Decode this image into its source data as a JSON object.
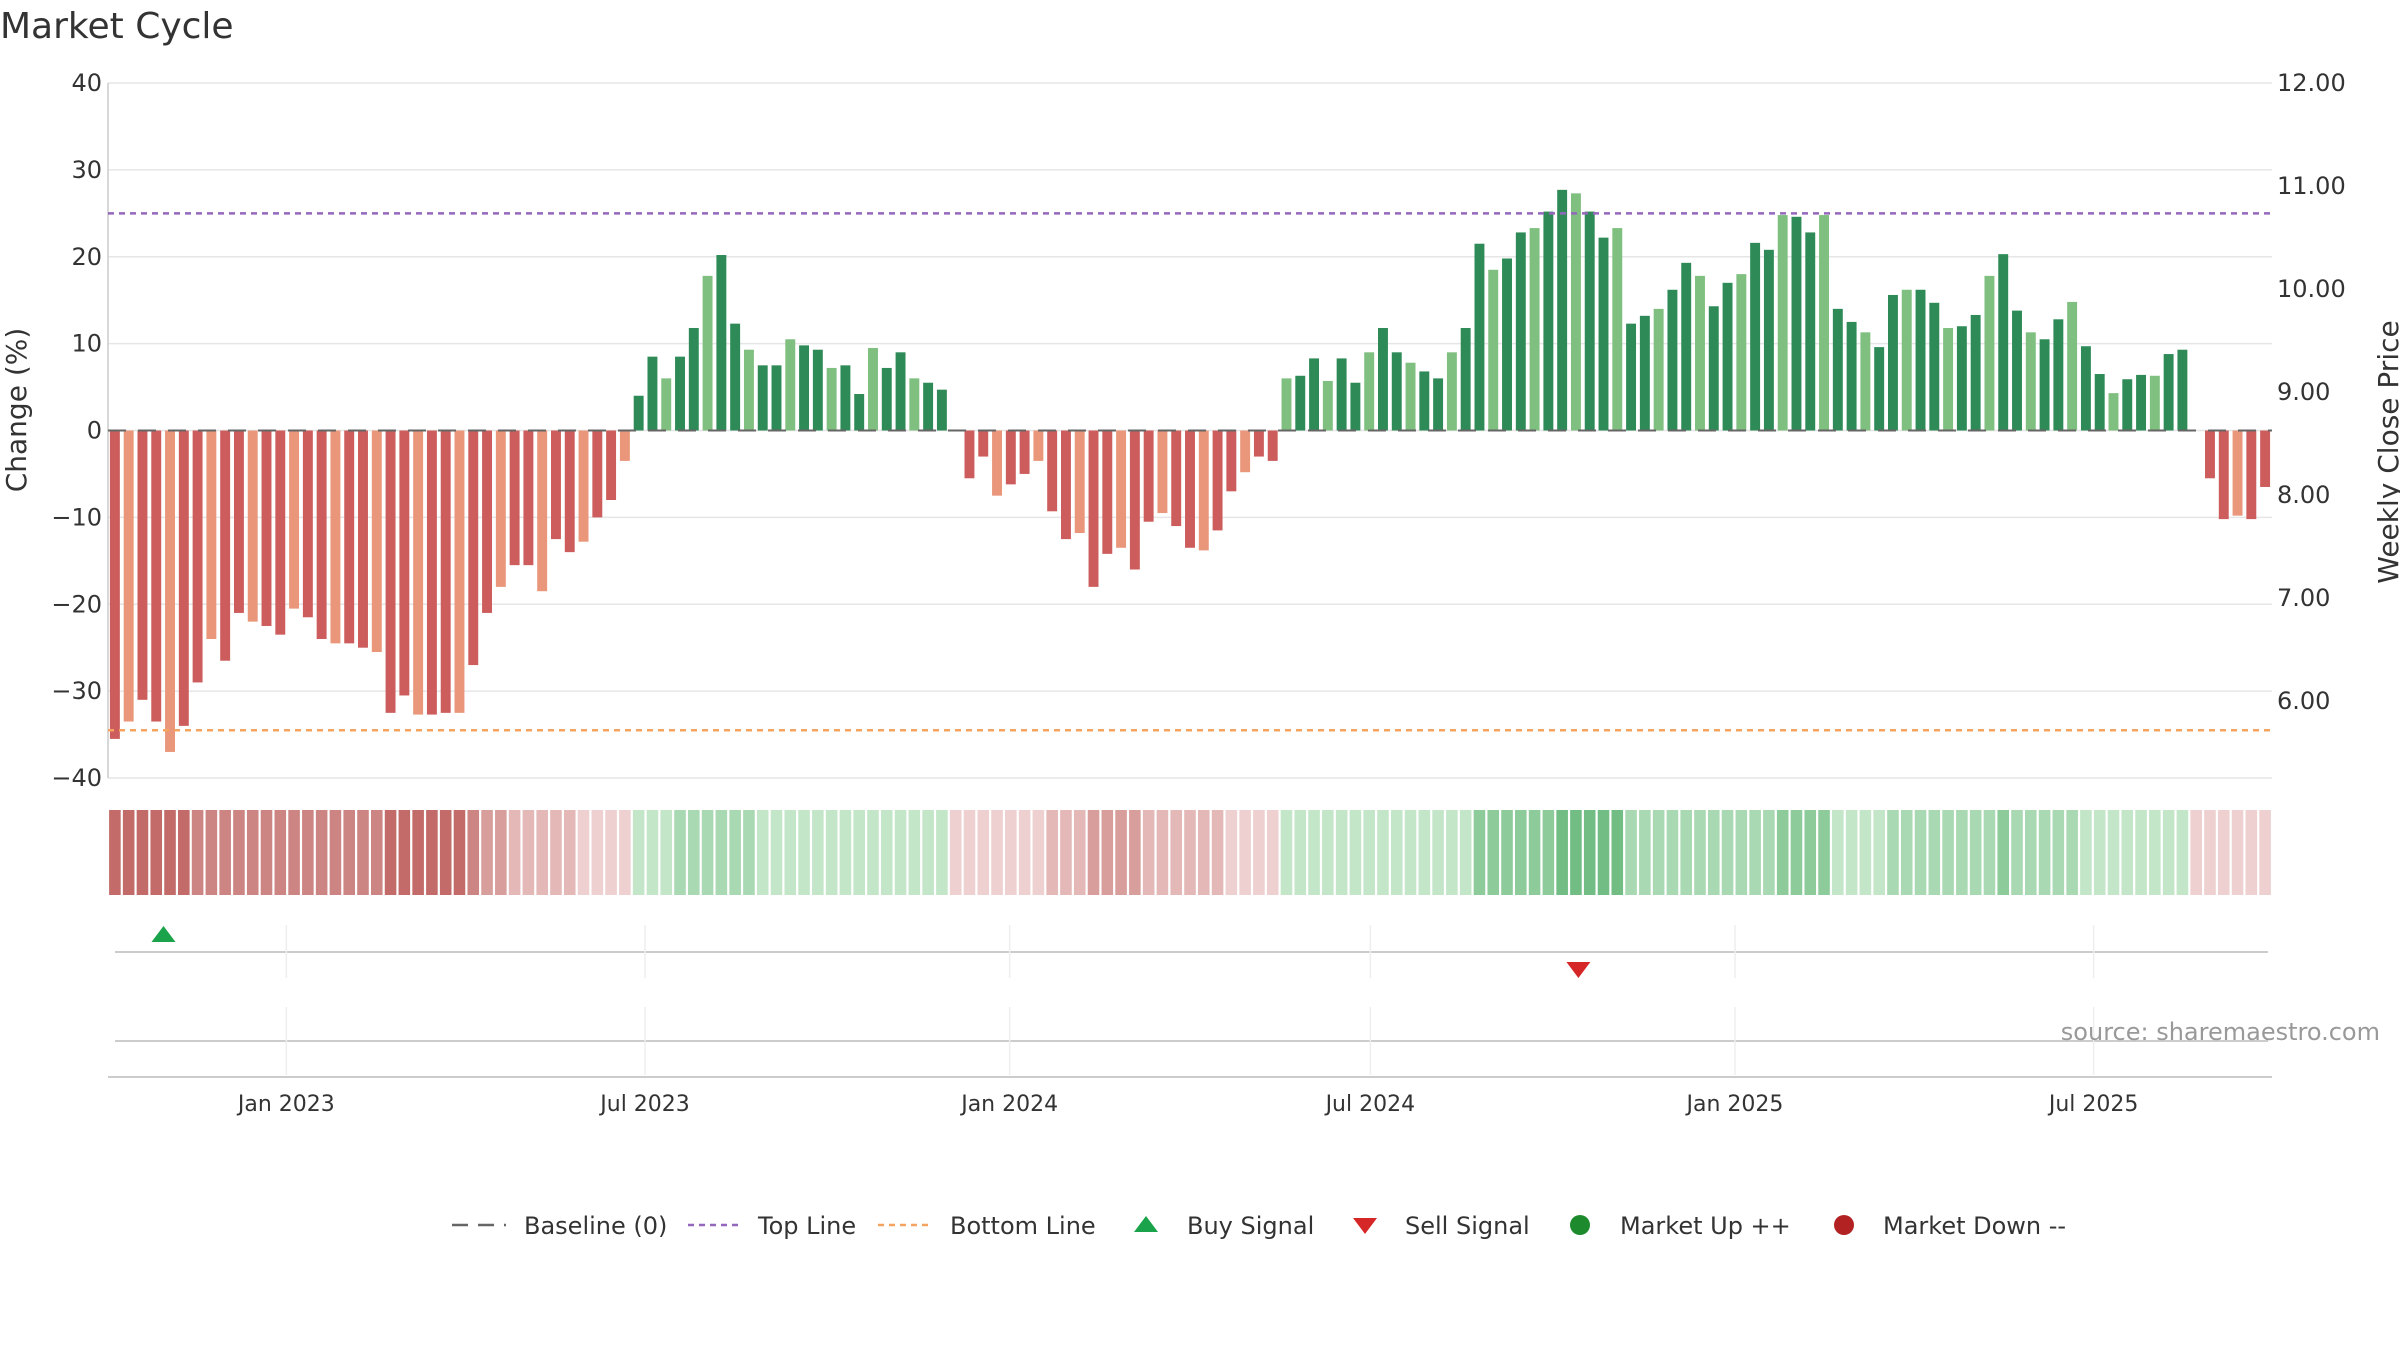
{
  "title": "Market Cycle",
  "source": "source: sharemaestro.com",
  "chart_data": {
    "type": "bar",
    "title": "Market Cycle",
    "ylabel": "Change (%)",
    "y2label": "Weekly Close Price",
    "ylim": [
      -40,
      40
    ],
    "y_ticks": [
      40,
      30,
      20,
      10,
      0,
      -10,
      -20,
      -30,
      -40
    ],
    "y_tick_labels": [
      "40",
      "30",
      "20",
      "10",
      "0",
      "−10",
      "−20",
      "−30",
      "−40"
    ],
    "y2lim": [
      5.25,
      12.0
    ],
    "y2_ticks": [
      "12.00",
      "11.00",
      "10.00",
      "9.00",
      "8.00",
      "7.00",
      "6.00"
    ],
    "x_start": "2022-10-03",
    "x_end": "2025-09-29",
    "x_ticks": [
      {
        "date": "2023-01-01",
        "label": "Jan 2023"
      },
      {
        "date": "2023-07-01",
        "label": "Jul 2023"
      },
      {
        "date": "2024-01-01",
        "label": "Jan 2024"
      },
      {
        "date": "2024-07-01",
        "label": "Jul 2024"
      },
      {
        "date": "2025-01-01",
        "label": "Jan 2025"
      },
      {
        "date": "2025-07-01",
        "label": "Jul 2025"
      }
    ],
    "top_line": 25,
    "bottom_line": -34.5,
    "baseline": 0,
    "grid": true,
    "values": [
      -35.5,
      -33.5,
      -31,
      -33.5,
      -37,
      -34,
      -29,
      -24,
      -26.5,
      -21,
      -22,
      -22.5,
      -23.5,
      -20.5,
      -21.5,
      -24,
      -24.5,
      -24.5,
      -25,
      -25.5,
      -32.5,
      -30.5,
      -32.7,
      -32.7,
      -32.5,
      -32.5,
      -27,
      -21,
      -18,
      -15.5,
      -15.5,
      -18.5,
      -12.5,
      -14,
      -12.8,
      -10,
      -8,
      -3.5,
      4,
      8.5,
      6,
      8.5,
      11.8,
      17.8,
      20.2,
      12.3,
      9.3,
      7.5,
      7.5,
      10.5,
      9.8,
      9.3,
      7.2,
      7.5,
      4.2,
      9.5,
      7.2,
      9,
      6,
      5.5,
      4.7,
      0,
      -5.5,
      -3,
      -7.5,
      -6.2,
      -5,
      -3.5,
      -9.3,
      -12.5,
      -11.8,
      -18,
      -14.2,
      -13.5,
      -16,
      -10.5,
      -9.5,
      -11,
      -13.5,
      -13.8,
      -11.5,
      -7,
      -4.8,
      -3,
      -3.5,
      6,
      6.3,
      8.3,
      5.7,
      8.3,
      5.5,
      9,
      11.8,
      9,
      7.8,
      6.8,
      6,
      9,
      11.8,
      21.5,
      18.5,
      19.8,
      22.8,
      23.3,
      25.2,
      27.7,
      27.3,
      25.2,
      22.2,
      23.3,
      12.3,
      13.2,
      14,
      16.2,
      19.3,
      17.8,
      14.3,
      17,
      18,
      21.6,
      20.8,
      24.8,
      24.6,
      22.8,
      24.8,
      14,
      12.5,
      11.3,
      9.6,
      15.6,
      16.2,
      16.2,
      14.7,
      11.8,
      12,
      13.3,
      17.8,
      20.3,
      13.8,
      11.3,
      10.5,
      12.8,
      14.8,
      9.7,
      6.5,
      4.3,
      5.9,
      6.4,
      6.3,
      8.8,
      9.3,
      0,
      -5.5,
      -10.2,
      -9.8,
      -10.2,
      -6.5
    ],
    "band_levels": [
      -5,
      -5,
      -5,
      -5,
      -5,
      -5,
      -4,
      -4,
      -4,
      -4,
      -4,
      -4,
      -4,
      -4,
      -4,
      -4,
      -4,
      -4,
      -4,
      -4,
      -5,
      -5,
      -5,
      -5,
      -5,
      -5,
      -4,
      -3,
      -3,
      -2,
      -2,
      -2,
      -2,
      -2,
      -1,
      -1,
      -1,
      -1,
      1,
      1,
      1,
      2,
      2,
      2,
      2,
      2,
      2,
      1,
      1,
      1,
      1,
      1,
      1,
      1,
      1,
      1,
      1,
      1,
      1,
      1,
      1,
      -1,
      -1,
      -1,
      -1,
      -1,
      -1,
      -1,
      -2,
      -2,
      -2,
      -3,
      -3,
      -3,
      -3,
      -2,
      -2,
      -2,
      -2,
      -2,
      -2,
      -1,
      -1,
      -1,
      -1,
      1,
      1,
      1,
      1,
      1,
      1,
      1,
      1,
      1,
      1,
      1,
      1,
      1,
      1,
      3,
      3,
      3,
      3,
      3,
      3,
      4,
      4,
      4,
      4,
      4,
      2,
      2,
      2,
      2,
      2,
      2,
      2,
      2,
      2,
      2,
      2,
      3,
      3,
      3,
      3,
      1,
      1,
      1,
      1,
      2,
      2,
      2,
      2,
      2,
      2,
      2,
      2,
      3,
      2,
      2,
      2,
      2,
      2,
      1,
      1,
      1,
      1,
      1,
      1,
      1,
      1,
      -1,
      -1,
      -1,
      -1,
      -1,
      -1
    ],
    "buy_signals": [
      "2022-10-31"
    ],
    "sell_signals": [
      "2024-10-14"
    ],
    "legend": [
      {
        "key": "baseline",
        "label": "Baseline (0)",
        "color": "#666666"
      },
      {
        "key": "top",
        "label": "Top Line",
        "color": "#9467bd"
      },
      {
        "key": "bottom",
        "label": "Bottom Line",
        "color": "#f4a460"
      },
      {
        "key": "buy",
        "label": "Buy Signal",
        "color": "#1aa34a"
      },
      {
        "key": "sell",
        "label": "Sell Signal",
        "color": "#d62728"
      },
      {
        "key": "up",
        "label": "Market Up ++",
        "color": "#1e8a2e"
      },
      {
        "key": "down",
        "label": "Market Down --",
        "color": "#b22222"
      }
    ]
  },
  "colors": {
    "pos_strong": "#2e8b57",
    "pos_light": "#7fbf7f",
    "neg_strong": "#cd5c5c",
    "neg_light": "#e9967a",
    "grid": "#e6e6e6",
    "axis": "#cccccc"
  }
}
